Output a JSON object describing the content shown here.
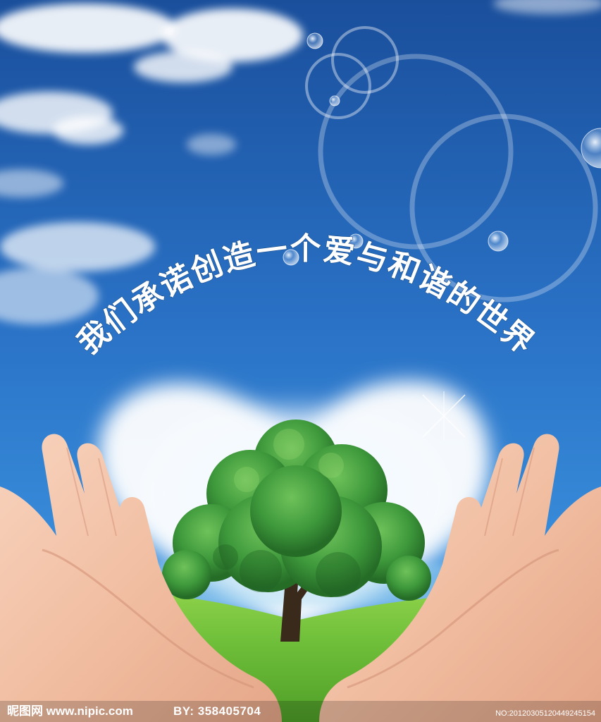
{
  "slogan": "我们承诺创造一个爱与和谐的世界",
  "watermark": {
    "site": "昵图网 www.nipic.com",
    "author": "BY: 358405704",
    "code": "NO:20120305120449245154"
  },
  "colors": {
    "sky_top": "#1a4f9c",
    "sky_mid": "#2a7fd0",
    "grass": "#6fbf3a",
    "tree": "#3f9a3c",
    "skin": "#f3c2a6"
  }
}
